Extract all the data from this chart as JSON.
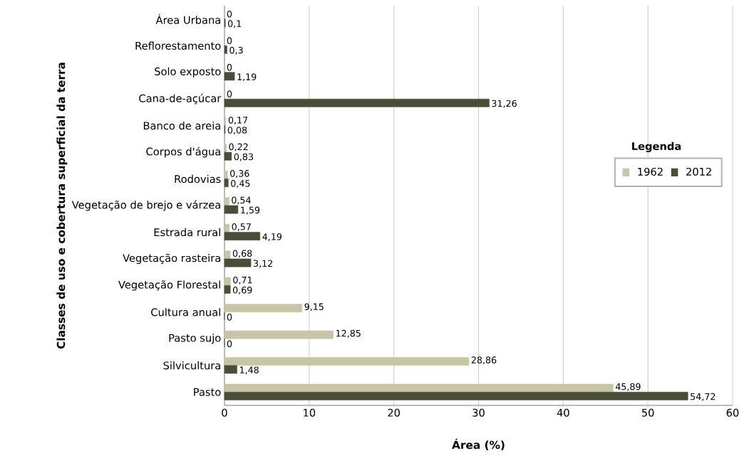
{
  "chart_data": {
    "type": "bar",
    "orientation": "horizontal",
    "xlabel": "Área (%)",
    "ylabel": "Classes de uso e cobertura superficial da terra",
    "categories": [
      "Área Urbana",
      "Reflorestamento",
      "Solo exposto",
      "Cana-de-açúcar",
      "Banco de areia",
      "Corpos d'água",
      "Rodovias",
      "Vegetação de brejo e várzea",
      "Estrada rural",
      "Vegetação rasteira",
      "Vegetação Florestal",
      "Cultura anual",
      "Pasto sujo",
      "Silvicultura",
      "Pasto"
    ],
    "series": [
      {
        "name": "1962",
        "color": "#c9c4a6",
        "values": [
          0,
          0,
          0,
          0,
          0.17,
          0.22,
          0.36,
          0.54,
          0.57,
          0.68,
          0.71,
          9.15,
          12.85,
          28.86,
          45.89
        ],
        "value_labels": [
          "0",
          "0",
          "0",
          "0",
          "0,17",
          "0,22",
          "0,36",
          "0,54",
          "0,57",
          "0,68",
          "0,71",
          "9,15",
          "12,85",
          "28,86",
          "45,89"
        ]
      },
      {
        "name": "2012",
        "color": "#4a4d38",
        "values": [
          0.1,
          0.3,
          1.19,
          31.26,
          0.08,
          0.83,
          0.45,
          1.59,
          4.19,
          3.12,
          0.69,
          0,
          0,
          1.48,
          54.72
        ],
        "value_labels": [
          "0,1",
          "0,3",
          "1,19",
          "31,26",
          "0,08",
          "0,83",
          "0,45",
          "1,59",
          "4,19",
          "3,12",
          "0,69",
          "0",
          "0",
          "1,48",
          "54,72"
        ]
      }
    ],
    "xlim": [
      0,
      60
    ],
    "xticks": [
      0,
      10,
      20,
      30,
      40,
      50,
      60
    ],
    "grid": "x",
    "legend": "right",
    "legend_title": "Legenda"
  }
}
